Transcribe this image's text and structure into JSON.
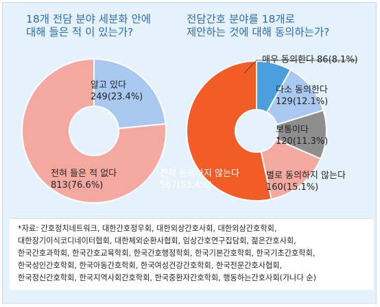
{
  "chart_data": [
    {
      "type": "pie",
      "title_lines": [
        "18개 전담 분야 세분화 안에",
        "대해 들은 적 이 있는가?"
      ],
      "slices": [
        {
          "label": "알고 있다",
          "value_text": "249(23.4%)",
          "value": 249,
          "percent": 23.4,
          "color": "#a9c8ef"
        },
        {
          "label": "전혀 들은 적 없다",
          "value_text": "813(76.6%)",
          "value": 813,
          "percent": 76.6,
          "color": "#f4a9a0"
        }
      ]
    },
    {
      "type": "pie",
      "title_lines": [
        "전담간호 분야를 18개로",
        "제안하는 것에 대해 동의하는가?"
      ],
      "slices": [
        {
          "label": "매우 동의한다",
          "value_text": "86(8.1%)",
          "value": 86,
          "percent": 8.1,
          "color": "#4a9fdc"
        },
        {
          "label": "다소 동의한다",
          "value_text": "129(12.1%)",
          "value": 129,
          "percent": 12.1,
          "color": "#a9c8ef"
        },
        {
          "label": "보통이다",
          "value_text": "120(11.3%)",
          "value": 120,
          "percent": 11.3,
          "color": "#8e8e8e"
        },
        {
          "label": "별로 동의하지 않는다",
          "value_text": "160(15.1%)",
          "value": 160,
          "percent": 15.1,
          "color": "#f4a9a0"
        },
        {
          "label": "전혀 동의하지 않는다",
          "value_text": "567(53.4%)",
          "value": 567,
          "percent": 53.4,
          "color": "#f25d27"
        }
      ]
    }
  ],
  "source_lines": [
    "*자료: 간호정치네트워크, 대한간호정우회, 대한외상간호사회, 대한외상간호학회,",
    "대한장기이식코디네이터협회, 대한체외순환사협회, 임상간호연구집담회, 젊은간호사회,",
    "한국간호과학회, 한국간호교육학회, 한국간호행정학회, 한국기본간호학회, 한국기초간호학회,",
    "한국성인간호학회, 한국아동간호학회, 한국여성건강간호학회, 한국전문간호사협회,",
    "한국정신간호학회, 한국지역사회간호학회, 한국중환자간호학회, 행동하는간호사회(가나다 순)"
  ]
}
